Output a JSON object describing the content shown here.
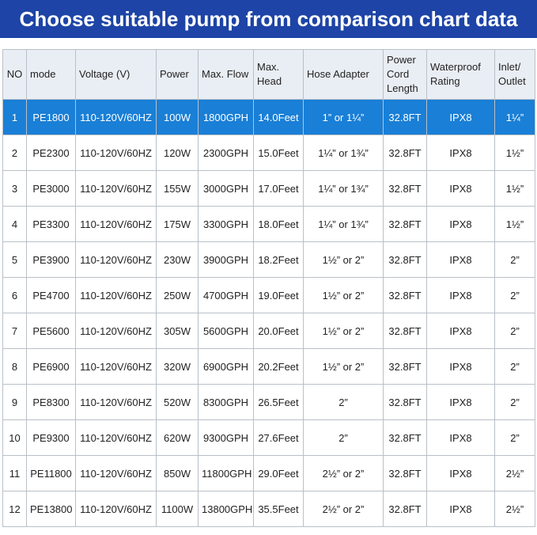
{
  "header": {
    "title": "Choose suitable pump from comparison chart data"
  },
  "table": {
    "columns": [
      "NO",
      "mode",
      "Voltage (V)",
      "Power",
      "Max. Flow",
      "Max. Head",
      "Hose Adapter",
      "Power Cord Length",
      "Waterproof Rating",
      "Inlet/ Outlet"
    ],
    "rows": [
      [
        "1",
        "PE1800",
        "110-120V/60HZ",
        "100W",
        "1800GPH",
        "14.0Feet",
        "1” or 1¼”",
        "32.8FT",
        "IPX8",
        "1¼”"
      ],
      [
        "2",
        "PE2300",
        "110-120V/60HZ",
        "120W",
        "2300GPH",
        "15.0Feet",
        "1¼” or 1¾”",
        "32.8FT",
        "IPX8",
        "1½”"
      ],
      [
        "3",
        "PE3000",
        "110-120V/60HZ",
        "155W",
        "3000GPH",
        "17.0Feet",
        "1¼” or 1¾”",
        "32.8FT",
        "IPX8",
        "1½”"
      ],
      [
        "4",
        "PE3300",
        "110-120V/60HZ",
        "175W",
        "3300GPH",
        "18.0Feet",
        "1¼” or 1¾”",
        "32.8FT",
        "IPX8",
        "1½”"
      ],
      [
        "5",
        "PE3900",
        "110-120V/60HZ",
        "230W",
        "3900GPH",
        "18.2Feet",
        "1½” or 2”",
        "32.8FT",
        "IPX8",
        "2”"
      ],
      [
        "6",
        "PE4700",
        "110-120V/60HZ",
        "250W",
        "4700GPH",
        "19.0Feet",
        "1½” or 2”",
        "32.8FT",
        "IPX8",
        "2”"
      ],
      [
        "7",
        "PE5600",
        "110-120V/60HZ",
        "305W",
        "5600GPH",
        "20.0Feet",
        "1½” or 2”",
        "32.8FT",
        "IPX8",
        "2”"
      ],
      [
        "8",
        "PE6900",
        "110-120V/60HZ",
        "320W",
        "6900GPH",
        "20.2Feet",
        "1½” or 2”",
        "32.8FT",
        "IPX8",
        "2”"
      ],
      [
        "9",
        "PE8300",
        "110-120V/60HZ",
        "520W",
        "8300GPH",
        "26.5Feet",
        "2”",
        "32.8FT",
        "IPX8",
        "2”"
      ],
      [
        "10",
        "PE9300",
        "110-120V/60HZ",
        "620W",
        "9300GPH",
        "27.6Feet",
        "2”",
        "32.8FT",
        "IPX8",
        "2”"
      ],
      [
        "11",
        "PE11800",
        "110-120V/60HZ",
        "850W",
        "11800GPH",
        "29.0Feet",
        "2½” or 2”",
        "32.8FT",
        "IPX8",
        "2½”"
      ],
      [
        "12",
        "PE13800",
        "110-120V/60HZ",
        "1100W",
        "13800GPH",
        "35.5Feet",
        "2½” or 2”",
        "32.8FT",
        "IPX8",
        "2½”"
      ]
    ]
  }
}
